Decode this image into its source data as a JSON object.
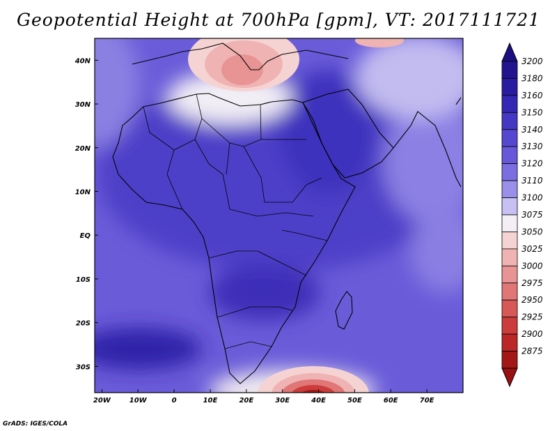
{
  "title": "Geopotential Height at 700hPa [gpm], VT: 2017111721",
  "credit": "GrADS: IGES/COLA",
  "map": {
    "lon_range": [
      -22,
      80
    ],
    "lat_range": [
      -36,
      45
    ],
    "lat_ticks": [
      {
        "value": 40,
        "label": "40N"
      },
      {
        "value": 30,
        "label": "30N"
      },
      {
        "value": 20,
        "label": "20N"
      },
      {
        "value": 10,
        "label": "10N"
      },
      {
        "value": 0,
        "label": "EQ"
      },
      {
        "value": -10,
        "label": "10S"
      },
      {
        "value": -20,
        "label": "20S"
      },
      {
        "value": -30,
        "label": "30S"
      }
    ],
    "lon_ticks": [
      {
        "value": -20,
        "label": "20W"
      },
      {
        "value": -10,
        "label": "10W"
      },
      {
        "value": 0,
        "label": "0"
      },
      {
        "value": 10,
        "label": "10E"
      },
      {
        "value": 20,
        "label": "20E"
      },
      {
        "value": 30,
        "label": "30E"
      },
      {
        "value": 40,
        "label": "40E"
      },
      {
        "value": 50,
        "label": "50E"
      },
      {
        "value": 60,
        "label": "60E"
      },
      {
        "value": 70,
        "label": "70E"
      }
    ]
  },
  "colorbar": {
    "levels": [
      {
        "label": "3200",
        "color": "#22148f"
      },
      {
        "label": "3180",
        "color": "#2a1ca0"
      },
      {
        "label": "3160",
        "color": "#3527b4"
      },
      {
        "label": "3150",
        "color": "#4437c4"
      },
      {
        "label": "3140",
        "color": "#5547cf"
      },
      {
        "label": "3130",
        "color": "#6658d8"
      },
      {
        "label": "3120",
        "color": "#7a6ee0"
      },
      {
        "label": "3110",
        "color": "#9a90e9"
      },
      {
        "label": "3100",
        "color": "#c6c0f3"
      },
      {
        "label": "3075",
        "color": "#f4eff4"
      },
      {
        "label": "3050",
        "color": "#f6d3d3"
      },
      {
        "label": "3025",
        "color": "#f0b3b3"
      },
      {
        "label": "3000",
        "color": "#e89494"
      },
      {
        "label": "2975",
        "color": "#e07676"
      },
      {
        "label": "2950",
        "color": "#d85858"
      },
      {
        "label": "2925",
        "color": "#cc3c3c"
      },
      {
        "label": "2900",
        "color": "#bb2626"
      },
      {
        "label": "2875",
        "color": "#a31717"
      }
    ],
    "top_arrow_color": "#1a0e80",
    "bottom_arrow_color": "#9a1010"
  }
}
